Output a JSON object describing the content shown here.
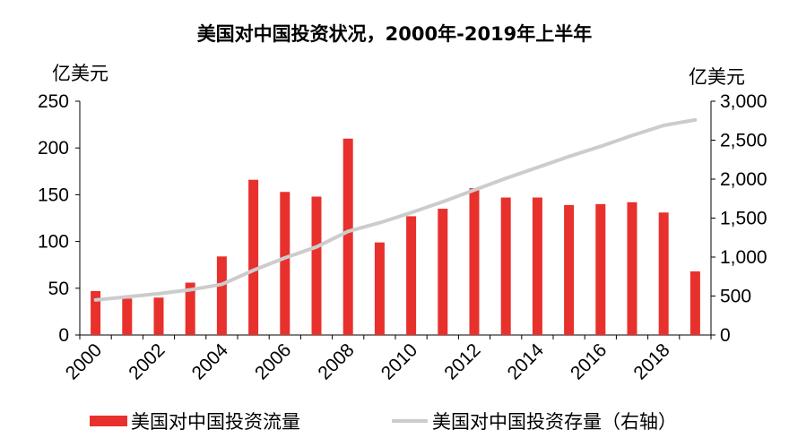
{
  "chart_data": {
    "type": "bar",
    "title": "美国对中国投资状况，2000年-2019年上半年",
    "ylabel_left": "亿美元",
    "ylabel_right": "亿美元",
    "x": [
      2000,
      2001,
      2002,
      2003,
      2004,
      2005,
      2006,
      2007,
      2008,
      2009,
      2010,
      2011,
      2012,
      2013,
      2014,
      2015,
      2016,
      2017,
      2018,
      2019
    ],
    "x_tick_labels": [
      "2000",
      "2002",
      "2004",
      "2006",
      "2008",
      "2010",
      "2012",
      "2014",
      "2016",
      "2018"
    ],
    "ylim_left": [
      0,
      250
    ],
    "yticks_left": [
      "0",
      "50",
      "100",
      "150",
      "200",
      "250"
    ],
    "ylim_right": [
      0,
      3000
    ],
    "yticks_right": [
      "0",
      "500",
      "1,000",
      "1,500",
      "2,000",
      "2,500",
      "3,000"
    ],
    "grid": false,
    "legend_position": "bottom",
    "series": [
      {
        "name": "美国对中国投资流量",
        "type": "bar",
        "axis": "left",
        "color": "#e8312c",
        "values": [
          47,
          39,
          40,
          56,
          84,
          166,
          153,
          148,
          210,
          99,
          127,
          135,
          157,
          147,
          147,
          139,
          140,
          142,
          131,
          68
        ]
      },
      {
        "name": "美国对中国投资存量（右轴）",
        "type": "line",
        "axis": "right",
        "color": "#cccccc",
        "values": [
          450,
          490,
          530,
          580,
          650,
          830,
          990,
          1130,
          1330,
          1440,
          1570,
          1710,
          1860,
          2010,
          2150,
          2290,
          2420,
          2560,
          2690,
          2760
        ]
      }
    ]
  }
}
